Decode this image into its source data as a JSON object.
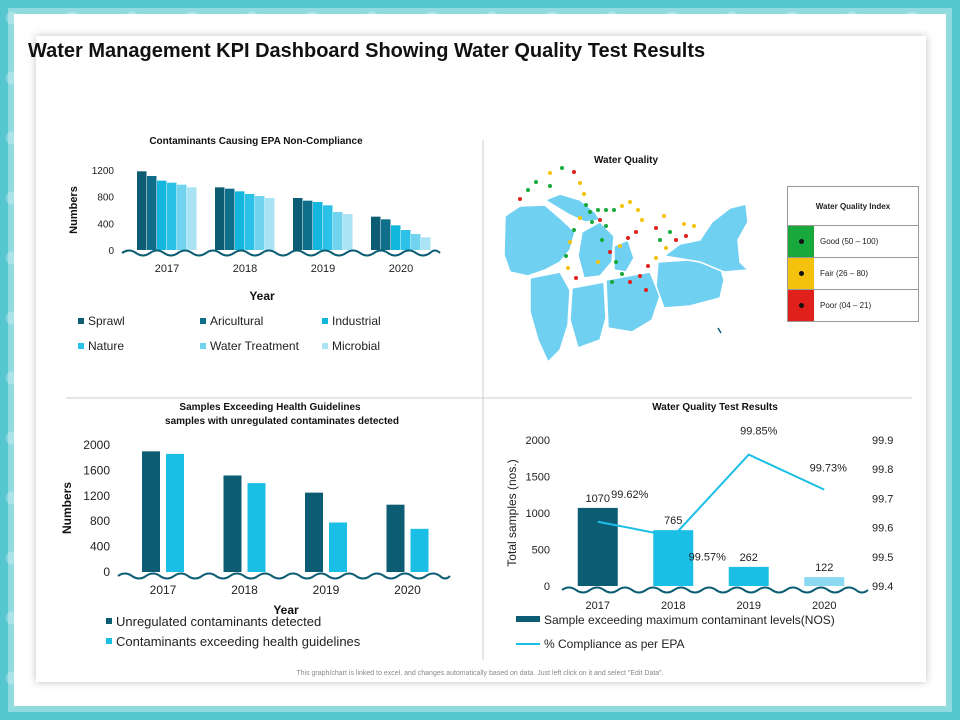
{
  "title": "Water Management KPI Dashboard Showing Water Quality Test Results",
  "footer_note": "This graph/chart is linked to excel, and changes automatically based on data. Just left click on it and select \"Edit Data\".",
  "colors": {
    "series6": [
      "#0c5d74",
      "#0f6f8a",
      "#13b7de",
      "#2cc2e8",
      "#72d3ee",
      "#a9e3f4"
    ],
    "dark": "#0c5d74",
    "cyan": "#1bbfe6",
    "map": "#6fd0f2",
    "good": "#18a83c",
    "fair": "#f4c20d",
    "poor": "#e0211b"
  },
  "water_quality": {
    "title": "Water Quality",
    "index_title": "Water Quality Index",
    "items": [
      {
        "label": "Good (50 – 100)",
        "color": "#18a83c"
      },
      {
        "label": "Fair (26 – 80)",
        "color": "#f4c20d"
      },
      {
        "label": "Poor (04 – 21)",
        "color": "#e0211b"
      }
    ]
  },
  "chart_data": [
    {
      "type": "bar",
      "title": "Contaminants Causing EPA Non-Compliance",
      "xlabel": "Year",
      "ylabel": "Numbers",
      "categories": [
        "2017",
        "2018",
        "2019",
        "2020"
      ],
      "ylim": [
        0,
        1200
      ],
      "yticks": [
        0,
        400,
        800,
        1200
      ],
      "series": [
        {
          "name": "Sprawl",
          "values": [
            1180,
            940,
            780,
            500
          ]
        },
        {
          "name": "Aricultural",
          "values": [
            1110,
            920,
            740,
            460
          ]
        },
        {
          "name": "Industrial",
          "values": [
            1040,
            880,
            720,
            370
          ]
        },
        {
          "name": "Nature",
          "values": [
            1010,
            840,
            670,
            300
          ]
        },
        {
          "name": "Water Treatment",
          "values": [
            980,
            810,
            570,
            240
          ]
        },
        {
          "name": "Microbial",
          "values": [
            940,
            780,
            540,
            190
          ]
        }
      ]
    },
    {
      "type": "bar",
      "title": "Samples Exceeding Health Guidelines",
      "subtitle": "samples with unregulated contaminates detected",
      "xlabel": "Year",
      "ylabel": "Numbers",
      "categories": [
        "2017",
        "2018",
        "2019",
        "2020"
      ],
      "ylim": [
        0,
        2000
      ],
      "yticks": [
        0,
        400,
        800,
        1200,
        1600,
        2000
      ],
      "series": [
        {
          "name": "Unregulated contaminants detected",
          "values": [
            1900,
            1520,
            1250,
            1060
          ]
        },
        {
          "name": "Contaminants exceeding health guidelines",
          "values": [
            1860,
            1400,
            780,
            680
          ]
        }
      ]
    },
    {
      "type": "bar+line",
      "title": "Water Quality Test Results",
      "ylabel": "Total samples (nos.)",
      "categories": [
        "2017",
        "2018",
        "2019",
        "2020"
      ],
      "ylim": [
        0,
        2000
      ],
      "yticks": [
        0,
        500,
        1000,
        1500,
        2000
      ],
      "y2lim": [
        99.4,
        99.9
      ],
      "y2ticks": [
        "99.4",
        "99.5",
        "99.6",
        "99.7",
        "99.8",
        "99.9"
      ],
      "bar_series": {
        "name": "Sample exceeding maximum contaminant levels(NOS)",
        "values": [
          1070,
          765,
          262,
          122
        ],
        "labels": [
          "1070",
          "765",
          "262",
          "122"
        ]
      },
      "line_series": {
        "name": "% Compliance as per EPA",
        "values": [
          99.62,
          99.57,
          99.85,
          99.73
        ],
        "labels": [
          "99.62%",
          "99.57%",
          "99.85%",
          "99.73%"
        ]
      }
    }
  ]
}
